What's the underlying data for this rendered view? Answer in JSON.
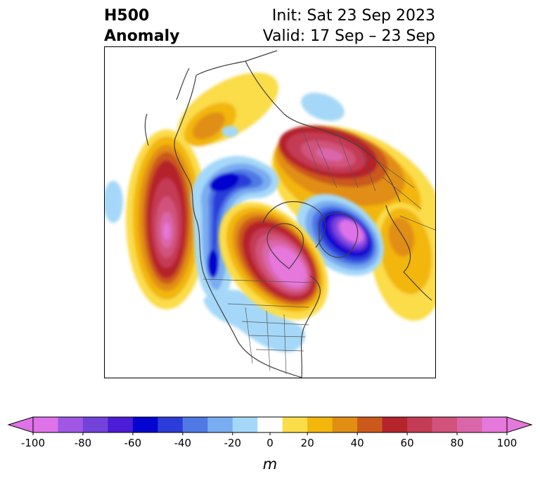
{
  "title": {
    "line1": "H500",
    "line2": "Anomaly",
    "init": "Init: Sat 23 Sep 2023",
    "valid": "Valid: 17 Sep – 23 Sep"
  },
  "map": {
    "projection": "north-polar-stereographic",
    "features": [
      "coastlines",
      "country-borders",
      "us-state-borders"
    ],
    "anomalies": [
      {
        "region": "Gulf of Alaska / Pacific",
        "sign": "positive",
        "peak_m": 100
      },
      {
        "region": "Siberia",
        "sign": "positive",
        "peak_m": 90
      },
      {
        "region": "Canadian Arctic / Greenland",
        "sign": "positive",
        "peak_m": 100
      },
      {
        "region": "North Atlantic / Europe",
        "sign": "positive",
        "peak_m": 40
      },
      {
        "region": "Bering / Northeast Asia",
        "sign": "negative",
        "peak_m": -70
      },
      {
        "region": "Arctic Ocean / Scandinavia",
        "sign": "negative",
        "peak_m": -100
      },
      {
        "region": "Western North Pacific",
        "sign": "negative",
        "peak_m": -60
      },
      {
        "region": "Eastern United States",
        "sign": "negative",
        "peak_m": -20
      }
    ]
  },
  "colorbar": {
    "unit": "m",
    "ticks": [
      "-100",
      "-80",
      "-60",
      "-40",
      "-20",
      "0",
      "20",
      "40",
      "60",
      "80",
      "100"
    ],
    "colors": [
      "#de72e8",
      "#a057e3",
      "#7342db",
      "#4c1cd6",
      "#0505cf",
      "#2c3cd9",
      "#5079e5",
      "#79acf0",
      "#a5d8f8",
      "#ffffff",
      "#fbdc49",
      "#f2b60c",
      "#e18e12",
      "#cb591c",
      "#b5242a",
      "#c43b55",
      "#d1527b",
      "#da66aa",
      "#e677db"
    ],
    "extend": "both"
  }
}
